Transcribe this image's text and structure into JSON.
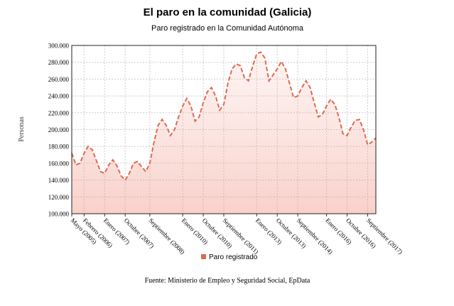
{
  "chart_data": {
    "type": "line",
    "title": "El paro en la comunidad (Galicia)",
    "subtitle": "Paro registrado en la Comunidad Autónoma",
    "y_label": "Personas",
    "source": "Fuente: Ministerio de Empleo y Seguridad Social, EpData",
    "categories": [
      "Mayo (2005)",
      null,
      null,
      "Febrero (2006)",
      null,
      null,
      null,
      null,
      "Enero (2007)",
      null,
      null,
      null,
      null,
      "Octubre (2007)",
      null,
      null,
      null,
      null,
      null,
      "Septiembre (2008)",
      null,
      null,
      null,
      null,
      null,
      null,
      null,
      "Enero (2010)",
      null,
      null,
      null,
      null,
      "Octubre (2010)",
      null,
      null,
      null,
      null,
      "Septiembre (2011)",
      null,
      null,
      null,
      null,
      null,
      null,
      null,
      "Enero (2013)",
      null,
      null,
      null,
      null,
      "Octubre (2013)",
      null,
      null,
      null,
      null,
      "Septiembre (2014)",
      null,
      null,
      null,
      null,
      null,
      null,
      "Enero (2016)",
      null,
      null,
      null,
      null,
      "Octubre (2016)",
      null,
      null,
      null,
      null,
      "Septiembre (2017)",
      null,
      null
    ],
    "series": [
      {
        "name": "Paro registrado",
        "color": "#e0694f",
        "values": [
          172000,
          158000,
          160000,
          172000,
          180000,
          176000,
          163000,
          150000,
          148000,
          158000,
          164000,
          157000,
          145000,
          140000,
          148000,
          160000,
          162000,
          156000,
          150000,
          160000,
          185000,
          205000,
          212000,
          205000,
          193000,
          200000,
          215000,
          228000,
          237000,
          228000,
          210000,
          215000,
          232000,
          245000,
          250000,
          240000,
          223000,
          230000,
          255000,
          272000,
          278000,
          276000,
          262000,
          258000,
          275000,
          290000,
          292000,
          285000,
          258000,
          265000,
          272000,
          281000,
          272000,
          255000,
          238000,
          240000,
          250000,
          258000,
          250000,
          232000,
          215000,
          218000,
          228000,
          236000,
          230000,
          215000,
          195000,
          193000,
          203000,
          211000,
          212000,
          200000,
          182000,
          185000,
          190000
        ]
      }
    ],
    "ylim": [
      100000,
      300000
    ],
    "yticks": [
      {
        "value": 100000,
        "label": "100.000"
      },
      {
        "value": 120000,
        "label": "120.000"
      },
      {
        "value": 140000,
        "label": "140.000"
      },
      {
        "value": 160000,
        "label": "160.000"
      },
      {
        "value": 180000,
        "label": "180.000"
      },
      {
        "value": 200000,
        "label": "200.000"
      },
      {
        "value": 220000,
        "label": "220.000"
      },
      {
        "value": 240000,
        "label": "240.000"
      },
      {
        "value": 260000,
        "label": "260.000"
      },
      {
        "value": 280000,
        "label": "280.000"
      },
      {
        "value": 300000,
        "label": "300.000"
      }
    ],
    "grid": true,
    "legend": "bottom"
  }
}
